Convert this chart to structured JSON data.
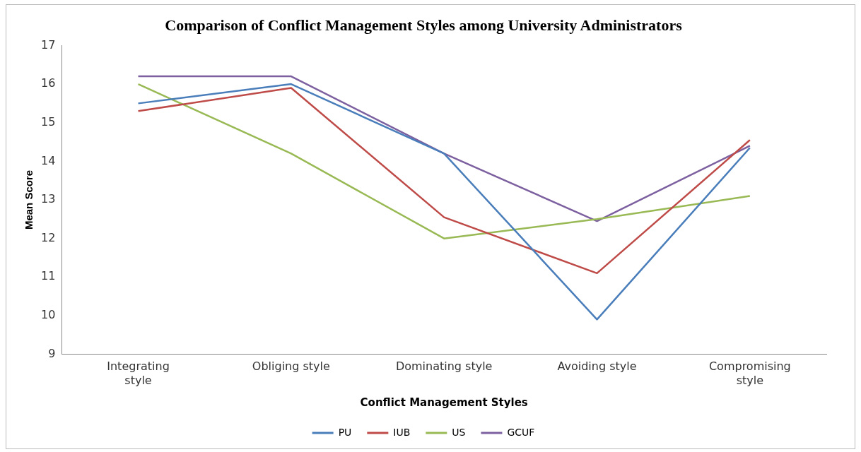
{
  "chart_data": {
    "type": "line",
    "title": "Comparison of Conflict Management Styles among University Administrators",
    "xlabel": "Conflict Management Styles",
    "ylabel": "Mean Score",
    "categories": [
      "Integrating style",
      "Obliging style",
      "Dominating style",
      "Avoiding style",
      "Compromising style"
    ],
    "series": [
      {
        "name": "PU",
        "color": "#4a7ebb",
        "values": [
          15.5,
          16.0,
          14.2,
          9.9,
          14.35
        ]
      },
      {
        "name": "IUB",
        "color": "#be4b48",
        "values": [
          15.3,
          15.9,
          12.55,
          11.1,
          14.55
        ]
      },
      {
        "name": "US",
        "color": "#98b954",
        "values": [
          16.0,
          14.2,
          12.0,
          12.5,
          13.1
        ]
      },
      {
        "name": "GCUF",
        "color": "#7d60a0",
        "values": [
          16.2,
          16.2,
          14.2,
          12.45,
          14.4
        ]
      }
    ],
    "ylim": [
      9,
      17
    ],
    "yticks": [
      9,
      10,
      11,
      12,
      13,
      14,
      15,
      16,
      17
    ],
    "grid": false,
    "legend": "bottom",
    "marker": "none",
    "line_style": "solid"
  }
}
